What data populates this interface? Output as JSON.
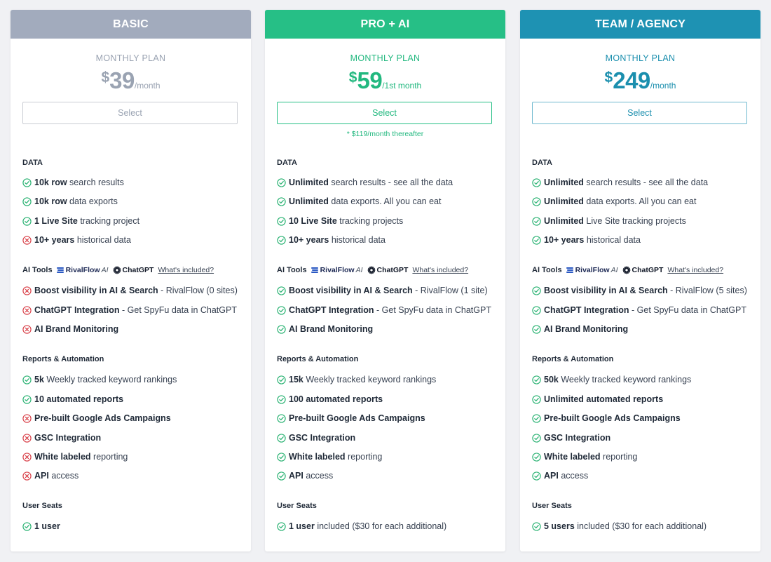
{
  "colors": {
    "basic": "#a2abbd",
    "pro": "#26bf86",
    "team": "#1e92b3",
    "check": "#2cb374",
    "x": "#d9424a"
  },
  "section_titles": {
    "data": "DATA",
    "ai_tools": "AI Tools",
    "reports": "Reports & Automation",
    "seats": "User Seats"
  },
  "ai_tools_header": {
    "rivalflow": "RivalFlow",
    "rivalflow_ai": "AI",
    "chatgpt": "ChatGPT",
    "whats_included": "What's included?"
  },
  "plans": [
    {
      "name": "BASIC",
      "plan_label": "MONTHLY PLAN",
      "currency": "$",
      "price": "39",
      "period": "/month",
      "select_label": "Select",
      "footnote": "",
      "features": {
        "data": [
          {
            "icon": "check",
            "bold": "10k row",
            "text": " search results"
          },
          {
            "icon": "check",
            "bold": "10k row",
            "text": " data exports"
          },
          {
            "icon": "check",
            "bold": "1 Live Site",
            "text": " tracking project"
          },
          {
            "icon": "x",
            "bold": "10+ years",
            "text": " historical data"
          }
        ],
        "ai_tools": [
          {
            "icon": "x",
            "bold": "Boost visibility in AI & Search",
            "text": " - RivalFlow (0 sites)"
          },
          {
            "icon": "x",
            "bold": "ChatGPT Integration",
            "text": " - Get SpyFu data in ChatGPT"
          },
          {
            "icon": "x",
            "bold": "AI Brand Monitoring",
            "text": ""
          }
        ],
        "reports": [
          {
            "icon": "check",
            "bold": "5k",
            "text": " Weekly tracked keyword rankings"
          },
          {
            "icon": "check",
            "bold": "10 automated reports",
            "text": ""
          },
          {
            "icon": "x",
            "bold": "Pre-built Google Ads Campaigns",
            "text": ""
          },
          {
            "icon": "x",
            "bold": "GSC Integration",
            "text": ""
          },
          {
            "icon": "x",
            "bold": "White labeled",
            "text": " reporting"
          },
          {
            "icon": "x",
            "bold": "API",
            "text": " access"
          }
        ],
        "seats": [
          {
            "icon": "check",
            "bold": "1 user",
            "text": ""
          }
        ]
      }
    },
    {
      "name": "PRO + AI",
      "plan_label": "MONTHLY PLAN",
      "currency": "$",
      "price": "59",
      "period": "/1st month",
      "select_label": "Select",
      "footnote": "* $119/month thereafter",
      "features": {
        "data": [
          {
            "icon": "check",
            "bold": "Unlimited",
            "text": " search results - see all the data"
          },
          {
            "icon": "check",
            "bold": "Unlimited",
            "text": " data exports. All you can eat"
          },
          {
            "icon": "check",
            "bold": "10 Live Site",
            "text": " tracking projects"
          },
          {
            "icon": "check",
            "bold": "10+ years",
            "text": " historical data"
          }
        ],
        "ai_tools": [
          {
            "icon": "check",
            "bold": "Boost visibility in AI & Search",
            "text": " - RivalFlow (1 site)"
          },
          {
            "icon": "check",
            "bold": "ChatGPT Integration",
            "text": " - Get SpyFu data in ChatGPT"
          },
          {
            "icon": "check",
            "bold": "AI Brand Monitoring",
            "text": ""
          }
        ],
        "reports": [
          {
            "icon": "check",
            "bold": "15k",
            "text": " Weekly tracked keyword rankings"
          },
          {
            "icon": "check",
            "bold": "100 automated reports",
            "text": ""
          },
          {
            "icon": "check",
            "bold": "Pre-built Google Ads Campaigns",
            "text": ""
          },
          {
            "icon": "check",
            "bold": "GSC Integration",
            "text": ""
          },
          {
            "icon": "check",
            "bold": "White labeled",
            "text": " reporting"
          },
          {
            "icon": "check",
            "bold": "API",
            "text": " access"
          }
        ],
        "seats": [
          {
            "icon": "check",
            "bold": "1 user",
            "text": " included ($30 for each additional)"
          }
        ]
      }
    },
    {
      "name": "TEAM / AGENCY",
      "plan_label": "MONTHLY PLAN",
      "currency": "$",
      "price": "249",
      "period": "/month",
      "select_label": "Select",
      "footnote": "",
      "features": {
        "data": [
          {
            "icon": "check",
            "bold": "Unlimited",
            "text": " search results - see all the data"
          },
          {
            "icon": "check",
            "bold": "Unlimited",
            "text": " data exports. All you can eat"
          },
          {
            "icon": "check",
            "bold": "Unlimited",
            "text": " Live Site tracking projects"
          },
          {
            "icon": "check",
            "bold": "10+ years",
            "text": " historical data"
          }
        ],
        "ai_tools": [
          {
            "icon": "check",
            "bold": "Boost visibility in AI & Search",
            "text": " - RivalFlow (5 sites)"
          },
          {
            "icon": "check",
            "bold": "ChatGPT Integration",
            "text": " - Get SpyFu data in ChatGPT"
          },
          {
            "icon": "check",
            "bold": "AI Brand Monitoring",
            "text": ""
          }
        ],
        "reports": [
          {
            "icon": "check",
            "bold": "50k",
            "text": " Weekly tracked keyword rankings"
          },
          {
            "icon": "check",
            "bold": "Unlimited automated reports",
            "text": ""
          },
          {
            "icon": "check",
            "bold": "Pre-built Google Ads Campaigns",
            "text": ""
          },
          {
            "icon": "check",
            "bold": "GSC Integration",
            "text": ""
          },
          {
            "icon": "check",
            "bold": "White labeled",
            "text": " reporting"
          },
          {
            "icon": "check",
            "bold": "API",
            "text": " access"
          }
        ],
        "seats": [
          {
            "icon": "check",
            "bold": "5 users",
            "text": " included ($30 for each additional)"
          }
        ]
      }
    }
  ]
}
